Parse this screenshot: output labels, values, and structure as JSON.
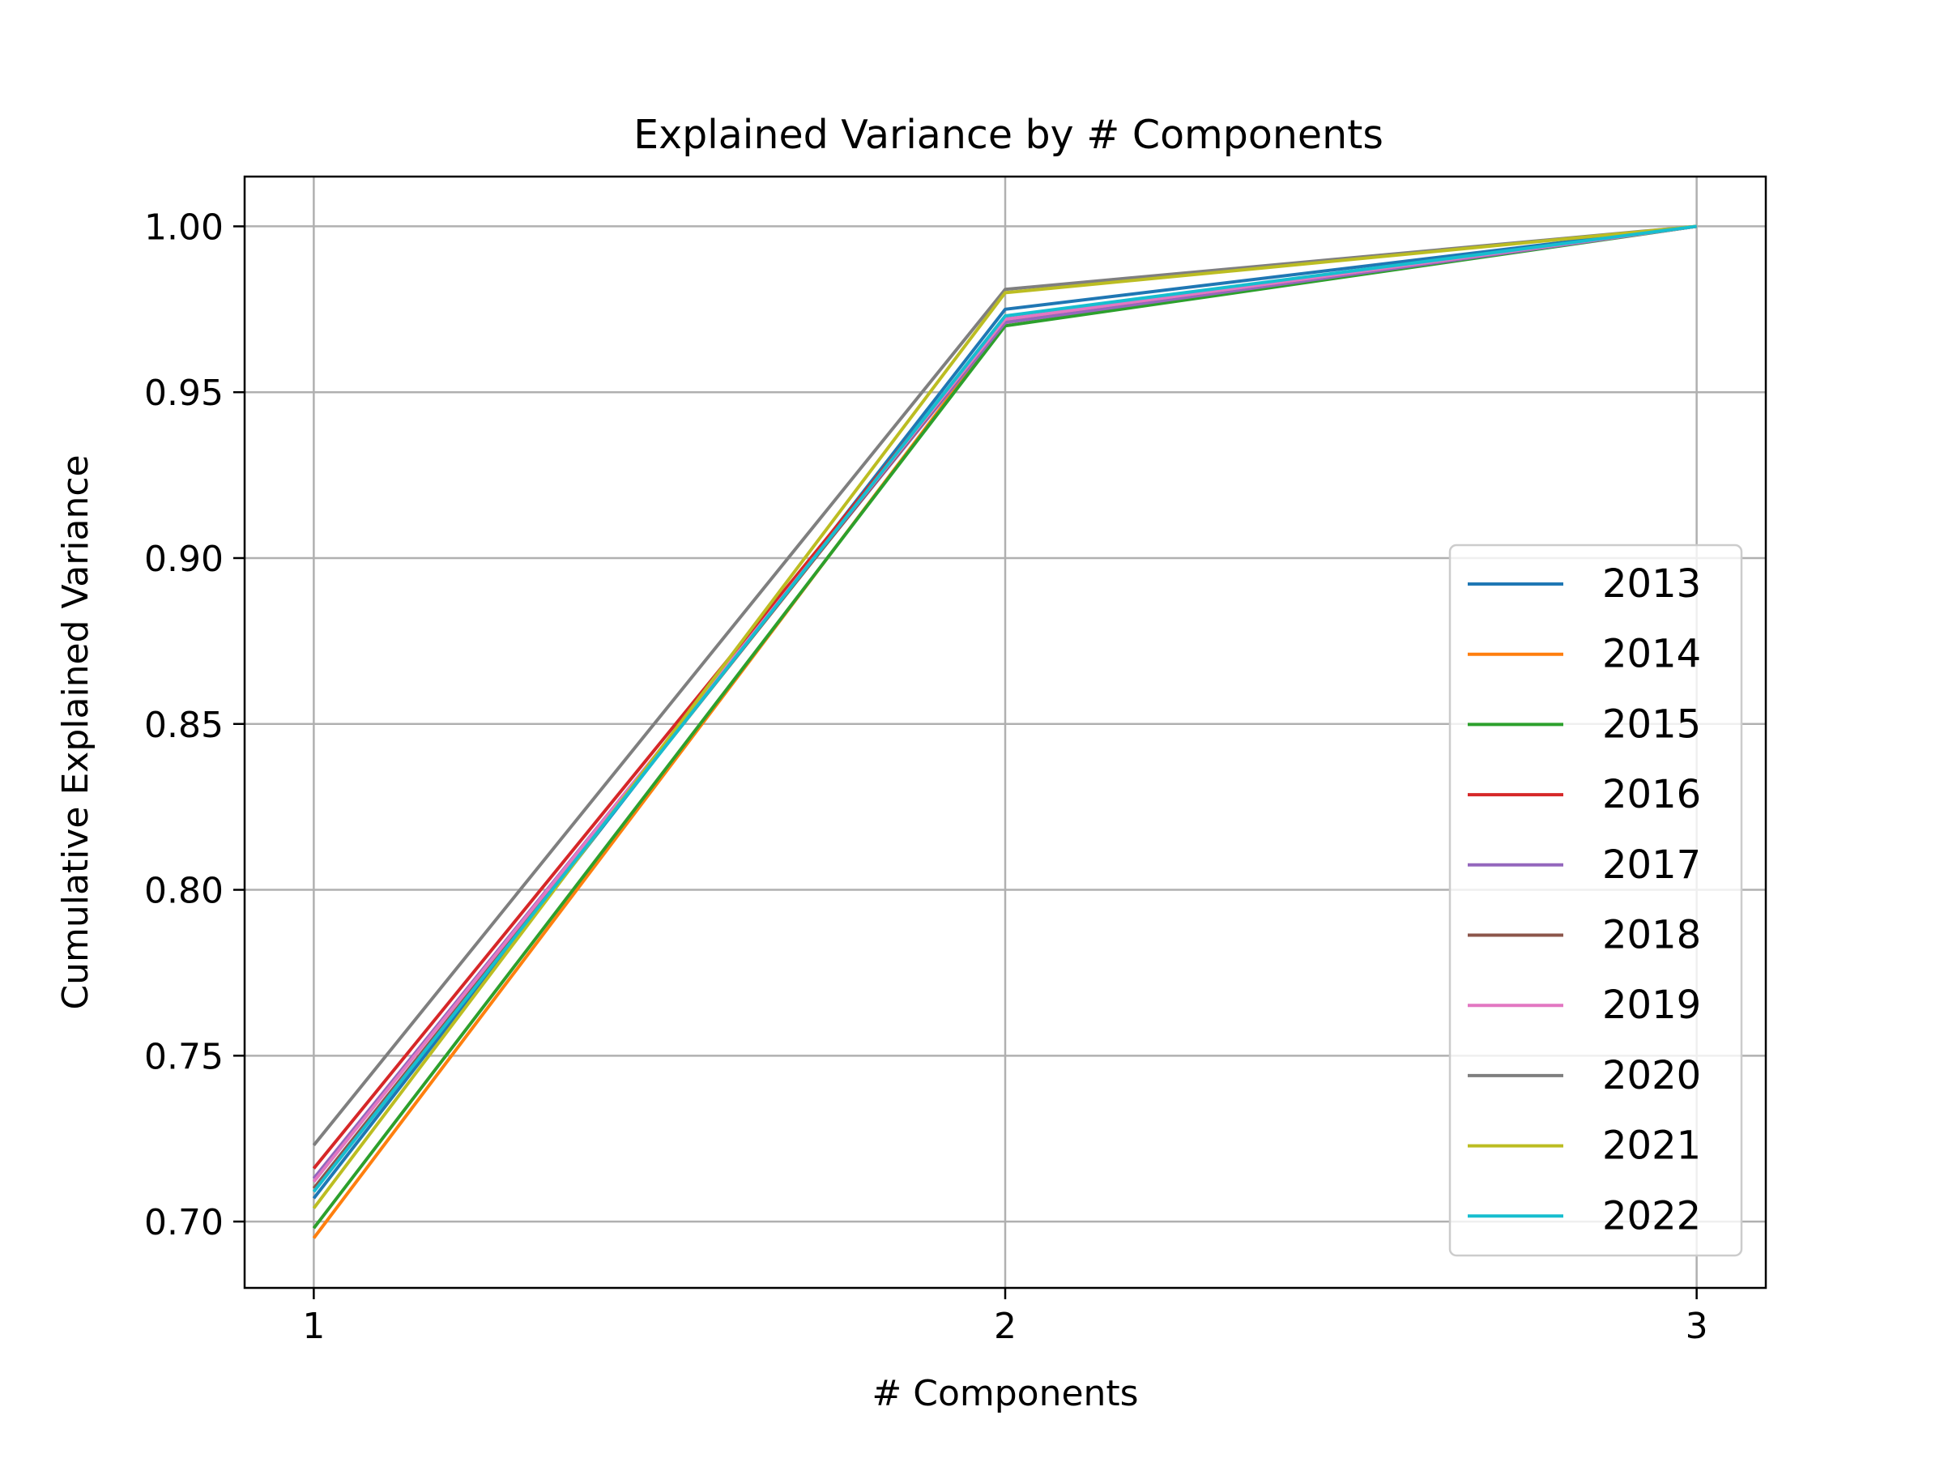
{
  "chart_data": {
    "type": "line",
    "title": "Explained Variance by # Components",
    "xlabel": "# Components",
    "ylabel": "Cumulative Explained Variance",
    "x": [
      1,
      2,
      3
    ],
    "x_ticks": [
      "1",
      "2",
      "3"
    ],
    "y_ticks": [
      "0.70",
      "0.75",
      "0.80",
      "0.85",
      "0.90",
      "0.95",
      "1.00"
    ],
    "xlim": [
      0.9,
      3.1
    ],
    "ylim": [
      0.68,
      1.015
    ],
    "grid": true,
    "legend_position": "lower-right",
    "series": [
      {
        "name": "2013",
        "color": "#1f77b4",
        "values": [
          0.707,
          0.975,
          1.0
        ]
      },
      {
        "name": "2014",
        "color": "#ff7f0e",
        "values": [
          0.695,
          0.971,
          1.0
        ]
      },
      {
        "name": "2015",
        "color": "#2ca02c",
        "values": [
          0.698,
          0.97,
          1.0
        ]
      },
      {
        "name": "2016",
        "color": "#d62728",
        "values": [
          0.716,
          0.972,
          1.0
        ]
      },
      {
        "name": "2017",
        "color": "#9467bd",
        "values": [
          0.713,
          0.971,
          1.0
        ]
      },
      {
        "name": "2018",
        "color": "#8c564b",
        "values": [
          0.71,
          0.972,
          1.0
        ]
      },
      {
        "name": "2019",
        "color": "#e377c2",
        "values": [
          0.712,
          0.972,
          1.0
        ]
      },
      {
        "name": "2020",
        "color": "#7f7f7f",
        "values": [
          0.723,
          0.981,
          1.0
        ]
      },
      {
        "name": "2021",
        "color": "#bcbd22",
        "values": [
          0.704,
          0.98,
          1.0
        ]
      },
      {
        "name": "2022",
        "color": "#17becf",
        "values": [
          0.709,
          0.973,
          1.0
        ]
      }
    ]
  }
}
